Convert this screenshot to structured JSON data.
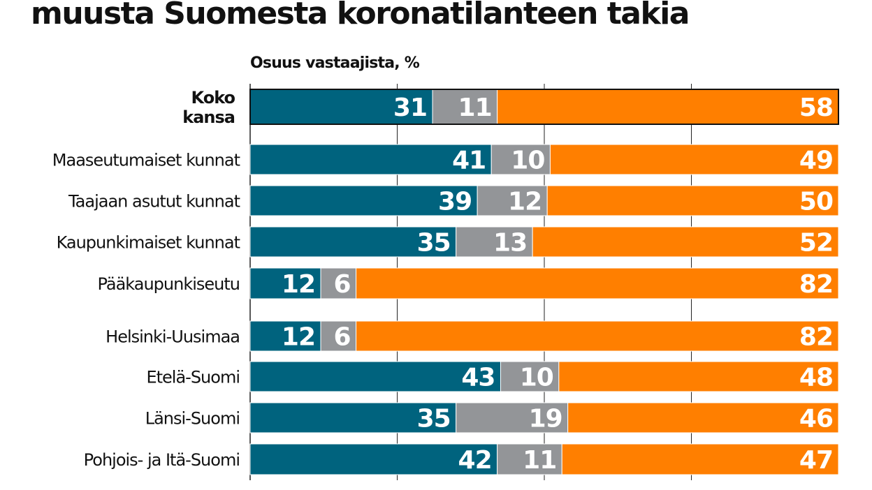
{
  "chart_data": {
    "type": "bar",
    "orientation": "horizontal",
    "stacked": true,
    "title": "muusta Suomesta koronatilanteen takia",
    "subtitle": "Osuus vastaajista, %",
    "xlim": [
      0,
      100
    ],
    "grid": true,
    "gridlines": [
      25,
      50,
      75
    ],
    "categories": [
      "Koko kansa",
      "Maaseutumaiset kunnat",
      "Taajaan asutut kunnat",
      "Kaupunkimaiset kunnat",
      "Pääkaupunkiseutu",
      "Helsinki-Uusimaa",
      "Etelä-Suomi",
      "Länsi-Suomi",
      "Pohjois- ja Itä-Suomi"
    ],
    "category_lines": [
      [
        "Koko",
        "kansa"
      ],
      [
        "Maaseutumaiset kunnat"
      ],
      [
        "Taajaan asutut kunnat"
      ],
      [
        "Kaupunkimaiset kunnat"
      ],
      [
        "Pääkaupunkiseutu"
      ],
      [
        "Helsinki-Uusimaa"
      ],
      [
        "Etelä-Suomi"
      ],
      [
        "Länsi-Suomi"
      ],
      [
        "Pohjois- ja Itä-Suomi"
      ]
    ],
    "series": [
      {
        "name": "series-1",
        "color": "#00637e",
        "values": [
          31,
          41,
          39,
          35,
          12,
          12,
          43,
          35,
          42
        ]
      },
      {
        "name": "series-2",
        "color": "#939598",
        "values": [
          11,
          10,
          12,
          13,
          6,
          6,
          10,
          19,
          11
        ]
      },
      {
        "name": "series-3",
        "color": "#ff7f00",
        "values": [
          58,
          49,
          50,
          52,
          82,
          82,
          48,
          46,
          47
        ]
      }
    ]
  }
}
